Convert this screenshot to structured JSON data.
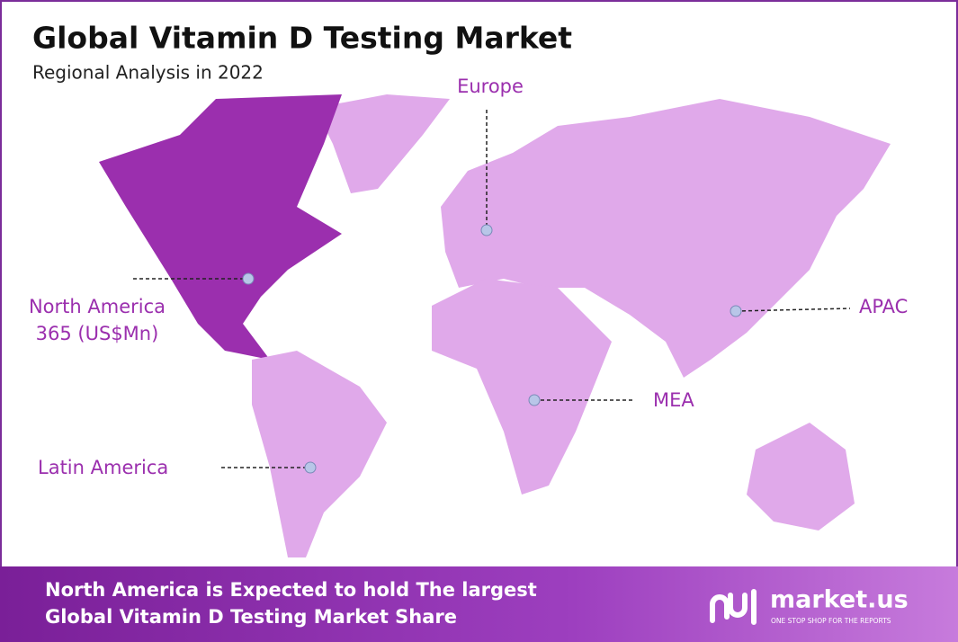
{
  "header": {
    "title": "Global Vitamin D Testing Market",
    "subtitle": "Regional Analysis in 2022"
  },
  "regions": {
    "europe": "Europe",
    "north_america": "North America",
    "north_america_value": "365 (US$Mn)",
    "apac": "APAC",
    "mea": "MEA",
    "latin_america": "Latin America"
  },
  "footer": {
    "line1": "North America is Expected to hold The largest",
    "line2": "Global Vitamin D Testing Market Share",
    "brand": "market.us",
    "tagline": "ONE STOP SHOP FOR THE REPORTS"
  }
}
